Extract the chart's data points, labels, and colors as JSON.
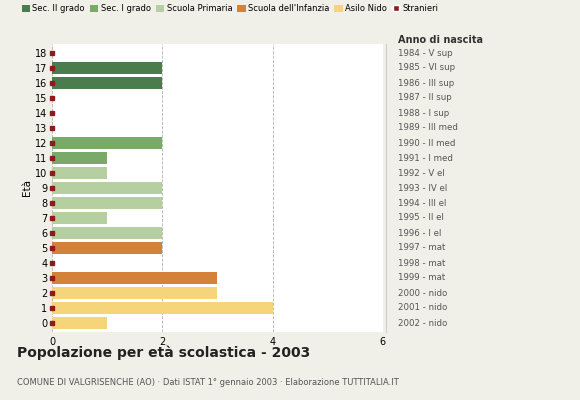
{
  "ages": [
    18,
    17,
    16,
    15,
    14,
    13,
    12,
    11,
    10,
    9,
    8,
    7,
    6,
    5,
    4,
    3,
    2,
    1,
    0
  ],
  "right_labels": [
    "1984 - V sup",
    "1985 - VI sup",
    "1986 - III sup",
    "1987 - II sup",
    "1988 - I sup",
    "1989 - III med",
    "1990 - II med",
    "1991 - I med",
    "1992 - V el",
    "1993 - IV el",
    "1994 - III el",
    "1995 - II el",
    "1996 - I el",
    "1997 - mat",
    "1998 - mat",
    "1999 - mat",
    "2000 - nido",
    "2001 - nido",
    "2002 - nido"
  ],
  "bar_values": [
    0,
    2,
    2,
    0,
    0,
    0,
    2,
    1,
    1,
    2,
    2,
    1,
    2,
    2,
    0,
    3,
    3,
    4,
    1
  ],
  "bar_colors": [
    "#8B1C1C",
    "#4a7c4e",
    "#4a7c4e",
    "#8B1C1C",
    "#8B1C1C",
    "#8B1C1C",
    "#7aaa6a",
    "#7aaa6a",
    "#b5cfa0",
    "#b5cfa0",
    "#b5cfa0",
    "#b5cfa0",
    "#b5cfa0",
    "#d4813a",
    "#8B1C1C",
    "#d4813a",
    "#f5d47a",
    "#f5d47a",
    "#f5d47a"
  ],
  "legend_labels": [
    "Sec. II grado",
    "Sec. I grado",
    "Scuola Primaria",
    "Scuola dell'Infanzia",
    "Asilo Nido",
    "Stranieri"
  ],
  "legend_colors": [
    "#4a7c4e",
    "#7aaa6a",
    "#b5cfa0",
    "#d4813a",
    "#f5d47a",
    "#8B1C1C"
  ],
  "title": "Popolazione per età scolastica - 2003",
  "subtitle": "COMUNE DI VALGRISENCHE (AO) · Dati ISTAT 1° gennaio 2003 · Elaborazione TUTTITALIA.IT",
  "ylabel_left": "Età",
  "xlabel_right": "Anno di nascita",
  "xlim": [
    0,
    6
  ],
  "xticks": [
    0,
    2,
    4,
    6
  ],
  "bg_color": "#f0f0e8",
  "plot_bg": "#ffffff",
  "bar_height": 0.75
}
